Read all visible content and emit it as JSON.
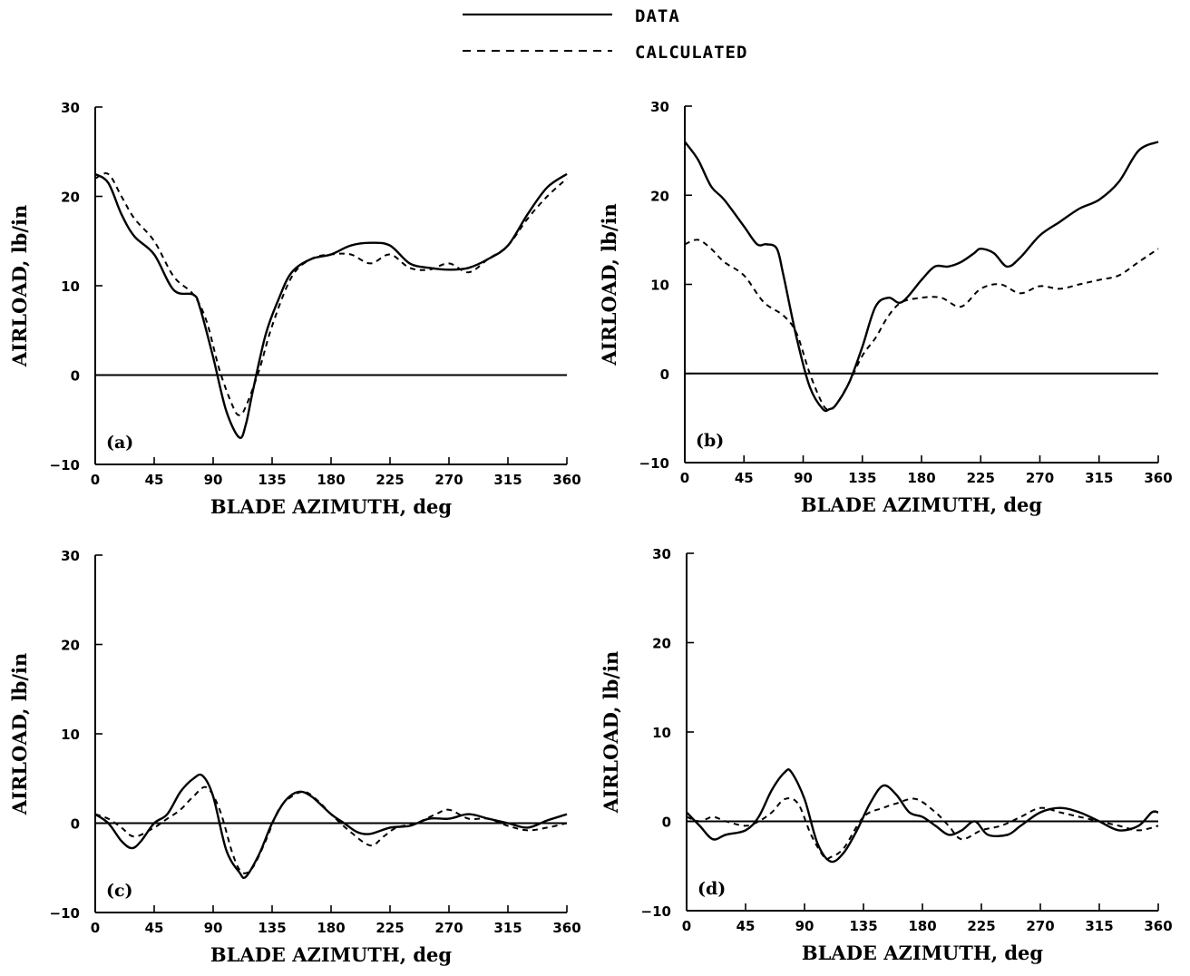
{
  "legend": [
    {
      "label": "DATA",
      "style": "solid"
    },
    {
      "label": "CALCULATED",
      "style": "dashed"
    }
  ],
  "chart_data": [
    {
      "type": "line",
      "panel_label": "(a)",
      "xlabel": "BLADE AZIMUTH, deg",
      "ylabel": "AIRLOAD, lb/in",
      "xlim": [
        0,
        360
      ],
      "ylim": [
        -10,
        30
      ],
      "xticks": [
        0,
        45,
        90,
        135,
        180,
        225,
        270,
        315,
        360
      ],
      "yticks": [
        -10,
        0,
        10,
        20,
        30
      ],
      "zero_line": true,
      "series": [
        {
          "name": "DATA",
          "style": "solid",
          "x": [
            0,
            10,
            20,
            30,
            45,
            60,
            75,
            80,
            90,
            100,
            110,
            115,
            120,
            130,
            140,
            150,
            165,
            180,
            195,
            210,
            225,
            240,
            255,
            270,
            285,
            300,
            315,
            330,
            345,
            360
          ],
          "y": [
            22.5,
            21.5,
            18,
            15.5,
            13.5,
            9.5,
            9,
            7.5,
            2,
            -4,
            -7,
            -5.5,
            -2,
            4.5,
            8.5,
            11.5,
            13,
            13.5,
            14.5,
            14.8,
            14.5,
            12.5,
            12,
            11.8,
            12,
            13,
            14.5,
            18,
            21,
            22.5
          ]
        },
        {
          "name": "CALCULATED",
          "style": "dashed",
          "x": [
            0,
            10,
            20,
            30,
            45,
            60,
            75,
            85,
            95,
            105,
            110,
            115,
            125,
            135,
            150,
            165,
            180,
            195,
            210,
            225,
            240,
            255,
            270,
            285,
            300,
            315,
            330,
            345,
            360
          ],
          "y": [
            22,
            22.5,
            20,
            17.5,
            15,
            11,
            9,
            6,
            0.5,
            -3.5,
            -4.5,
            -3.5,
            0.5,
            5.5,
            11,
            13,
            13.5,
            13.5,
            12.5,
            13.5,
            12,
            11.8,
            12.5,
            11.5,
            13,
            14.5,
            17.5,
            20,
            22
          ]
        }
      ]
    },
    {
      "type": "line",
      "panel_label": "(b)",
      "xlabel": "BLADE AZIMUTH, deg",
      "ylabel": "AIRLOAD, lb/in",
      "xlim": [
        0,
        360
      ],
      "ylim": [
        -10,
        30
      ],
      "xticks": [
        0,
        45,
        90,
        135,
        180,
        225,
        270,
        315,
        360
      ],
      "yticks": [
        -10,
        0,
        10,
        20,
        30
      ],
      "zero_line": true,
      "series": [
        {
          "name": "DATA",
          "style": "solid",
          "x": [
            0,
            10,
            20,
            30,
            45,
            55,
            62,
            70,
            75,
            85,
            95,
            105,
            110,
            115,
            125,
            135,
            145,
            155,
            165,
            180,
            190,
            200,
            210,
            220,
            225,
            235,
            245,
            255,
            270,
            285,
            300,
            315,
            330,
            345,
            360
          ],
          "y": [
            26,
            24,
            21,
            19.5,
            16.5,
            14.5,
            14.5,
            14,
            11,
            4,
            -1.5,
            -4,
            -4,
            -3.5,
            -1,
            3,
            7.5,
            8.5,
            8,
            10.5,
            12,
            12,
            12.5,
            13.5,
            14,
            13.5,
            12,
            13,
            15.5,
            17,
            18.5,
            19.5,
            21.5,
            25,
            26
          ]
        },
        {
          "name": "CALCULATED",
          "style": "dashed",
          "x": [
            0,
            10,
            20,
            30,
            45,
            60,
            75,
            85,
            95,
            105,
            110,
            115,
            125,
            135,
            145,
            155,
            165,
            180,
            195,
            210,
            225,
            240,
            255,
            270,
            285,
            300,
            315,
            330,
            345,
            360
          ],
          "y": [
            14.5,
            15,
            14,
            12.5,
            11,
            8,
            6.5,
            4.5,
            0,
            -3.5,
            -4,
            -3.5,
            -1,
            2,
            4,
            6.5,
            8,
            8.5,
            8.5,
            7.5,
            9.5,
            10,
            9,
            9.8,
            9.5,
            10,
            10.5,
            11,
            12.5,
            14
          ]
        }
      ]
    },
    {
      "type": "line",
      "panel_label": "(c)",
      "xlabel": "BLADE AZIMUTH, deg",
      "ylabel": "AIRLOAD, lb/in",
      "xlim": [
        0,
        360
      ],
      "ylim": [
        -10,
        30
      ],
      "xticks": [
        0,
        45,
        90,
        135,
        180,
        225,
        270,
        315,
        360
      ],
      "yticks": [
        -10,
        0,
        10,
        20,
        30
      ],
      "zero_line": true,
      "series": [
        {
          "name": "DATA",
          "style": "solid",
          "x": [
            0,
            10,
            20,
            28,
            35,
            45,
            55,
            65,
            75,
            82,
            90,
            100,
            110,
            115,
            125,
            135,
            145,
            155,
            165,
            180,
            190,
            200,
            210,
            225,
            240,
            255,
            270,
            285,
            300,
            315,
            330,
            345,
            360
          ],
          "y": [
            1,
            0,
            -2,
            -2.8,
            -2,
            0,
            1,
            3.5,
            5,
            5.3,
            3,
            -3,
            -5.5,
            -6,
            -3.5,
            0,
            2.5,
            3.5,
            3,
            1,
            0,
            -1,
            -1.2,
            -0.5,
            -0.3,
            0.5,
            0.5,
            1,
            0.5,
            0,
            -0.5,
            0.3,
            1
          ]
        },
        {
          "name": "CALCULATED",
          "style": "dashed",
          "x": [
            0,
            10,
            20,
            30,
            45,
            55,
            65,
            75,
            85,
            95,
            105,
            112,
            120,
            130,
            140,
            150,
            160,
            170,
            180,
            195,
            210,
            220,
            230,
            245,
            260,
            270,
            285,
            300,
            315,
            330,
            345,
            360
          ],
          "y": [
            1,
            0.5,
            -0.5,
            -1.5,
            -0.5,
            0.5,
            1.5,
            3,
            4,
            1.5,
            -3.5,
            -5.5,
            -5,
            -2,
            1.5,
            3,
            3.5,
            2.5,
            1,
            -1,
            -2.5,
            -1.5,
            -0.5,
            0,
            1,
            1.5,
            0.5,
            0.5,
            -0.3,
            -0.8,
            -0.5,
            0
          ]
        }
      ]
    },
    {
      "type": "line",
      "panel_label": "(d)",
      "xlabel": "BLADE AZIMUTH, deg",
      "ylabel": "AIRLOAD, lb/in",
      "xlim": [
        0,
        360
      ],
      "ylim": [
        -10,
        30
      ],
      "xticks": [
        0,
        45,
        90,
        135,
        180,
        225,
        270,
        315,
        360
      ],
      "yticks": [
        -10,
        0,
        10,
        20,
        30
      ],
      "zero_line": true,
      "series": [
        {
          "name": "DATA",
          "style": "solid",
          "x": [
            0,
            10,
            20,
            30,
            45,
            55,
            65,
            75,
            80,
            90,
            100,
            110,
            120,
            130,
            140,
            150,
            160,
            170,
            180,
            190,
            200,
            210,
            220,
            230,
            245,
            255,
            270,
            285,
            300,
            315,
            330,
            345,
            355,
            360
          ],
          "y": [
            1,
            -0.5,
            -2,
            -1.5,
            -1,
            0.5,
            3.5,
            5.5,
            5.5,
            2.5,
            -2.5,
            -4.5,
            -3.5,
            -1,
            2,
            4,
            3,
            1,
            0.5,
            -0.5,
            -1.5,
            -1,
            0,
            -1.5,
            -1.5,
            -0.5,
            1,
            1.5,
            1,
            0,
            -1,
            -0.5,
            1,
            1
          ]
        },
        {
          "name": "CALCULATED",
          "style": "dashed",
          "x": [
            0,
            10,
            20,
            30,
            45,
            55,
            65,
            75,
            85,
            95,
            105,
            110,
            120,
            135,
            150,
            160,
            175,
            190,
            200,
            210,
            225,
            240,
            255,
            270,
            285,
            300,
            315,
            330,
            345,
            360
          ],
          "y": [
            0.5,
            0,
            0.5,
            0,
            -0.5,
            0,
            1,
            2.5,
            2,
            -1.5,
            -4,
            -4,
            -3,
            0.5,
            1.5,
            2,
            2.5,
            1,
            -0.5,
            -2,
            -1,
            -0.5,
            0.5,
            1.5,
            1,
            0.5,
            0,
            -0.5,
            -1,
            -0.5
          ]
        }
      ]
    }
  ]
}
